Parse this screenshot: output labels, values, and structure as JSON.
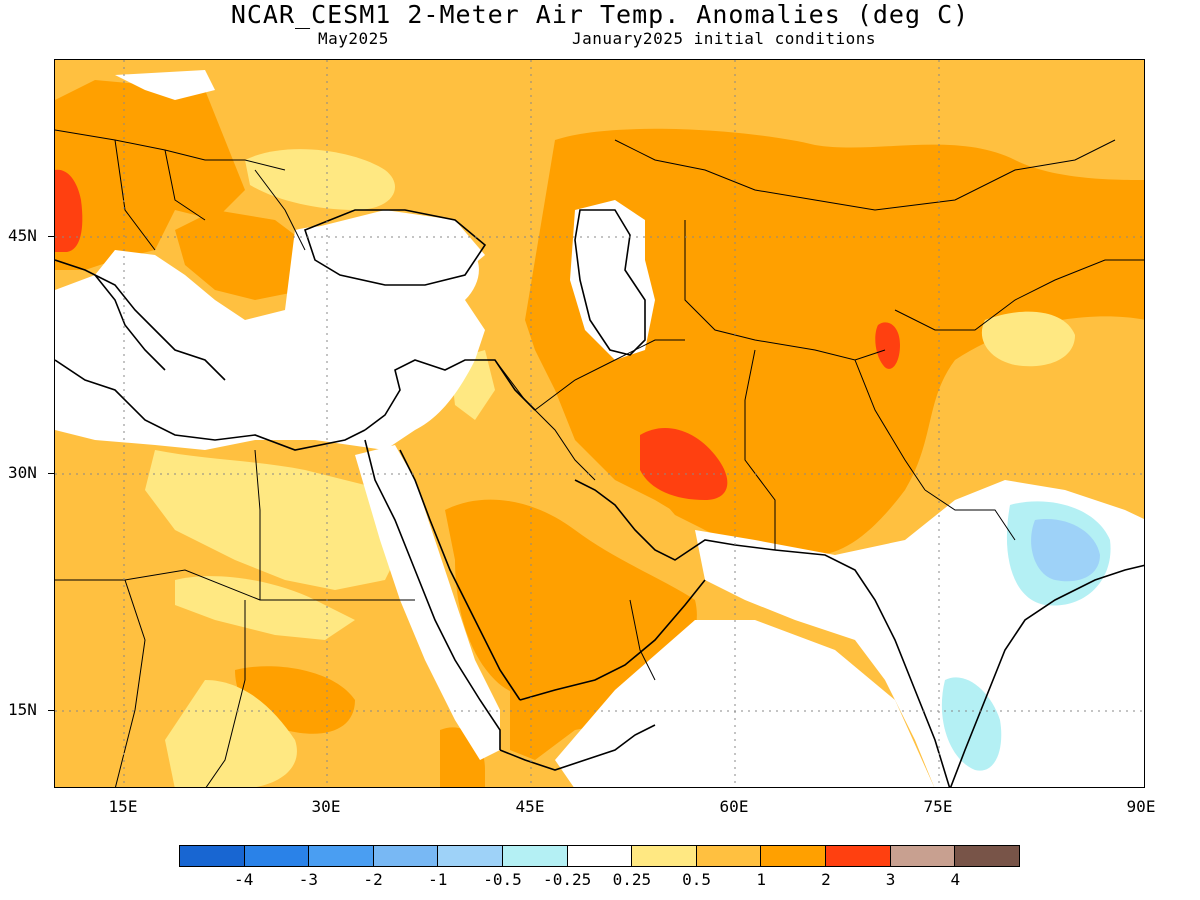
{
  "header": {
    "title": "NCAR_CESM1 2-Meter Air Temp. Anomalies (deg C)",
    "month": "May2025",
    "init": "January2025 initial conditions"
  },
  "axes": {
    "lat_labels": [
      "45N",
      "30N",
      "15N"
    ],
    "lon_labels": [
      "15E",
      "30E",
      "45E",
      "60E",
      "75E",
      "90E"
    ]
  },
  "legend": {
    "colors": [
      "#1866d2",
      "#2a82e8",
      "#4a9ef2",
      "#78b8f4",
      "#9ed2f8",
      "#b4f0f4",
      "#ffffff",
      "#ffe882",
      "#ffc040",
      "#ffa000",
      "#ff4010",
      "#c8a090",
      "#785448"
    ],
    "labels": [
      "-4",
      "-3",
      "-2",
      "-1",
      "-0.5",
      "-0.25",
      "0.25",
      "0.5",
      "1",
      "2",
      "3",
      "4"
    ]
  },
  "colors": {
    "land_outline": "#000000",
    "grid": "#888888"
  }
}
